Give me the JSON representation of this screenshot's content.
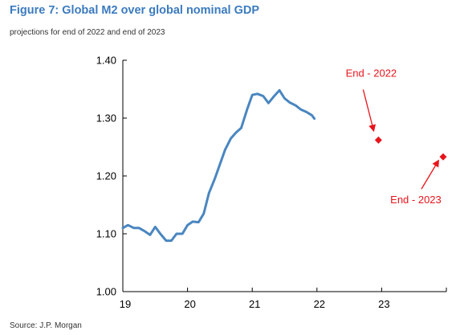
{
  "figure": {
    "title": "Figure 7: Global M2 over global nominal GDP",
    "subtitle": "projections for end of 2022 and end of 2023",
    "source": "Source: J.P. Morgan"
  },
  "colors": {
    "title": "#3b7bbf",
    "line": "#4a86c0",
    "projection": "#e8141b"
  },
  "chart_data": {
    "type": "line",
    "title": "Figure 7: Global M2 over global nominal GDP",
    "subtitle": "projections for end of 2022 and end of 2023",
    "xlabel": "",
    "ylabel": "",
    "xlim": [
      19,
      24
    ],
    "ylim": [
      1.0,
      1.4
    ],
    "x_ticks": [
      19,
      20,
      21,
      22,
      23
    ],
    "x_tick_labels": [
      "19",
      "20",
      "21",
      "22",
      "23"
    ],
    "y_ticks": [
      1.0,
      1.1,
      1.2,
      1.3,
      1.4
    ],
    "y_tick_labels": [
      "1.00",
      "1.10",
      "1.20",
      "1.30",
      "1.40"
    ],
    "grid": false,
    "legend": "none",
    "series": [
      {
        "x": [
          19.0,
          19.08,
          19.17,
          19.25,
          19.33,
          19.42,
          19.5,
          19.58,
          19.67,
          19.75,
          19.83,
          19.92,
          20.0,
          20.08,
          20.17,
          20.25,
          20.33,
          20.42,
          20.5,
          20.58,
          20.67,
          20.75,
          20.83,
          20.92,
          21.0,
          21.08,
          21.17,
          21.25,
          21.33,
          21.42,
          21.5,
          21.58,
          21.67,
          21.75,
          21.83,
          21.92,
          21.96
        ],
        "values": [
          1.11,
          1.115,
          1.11,
          1.11,
          1.105,
          1.098,
          1.112,
          1.1,
          1.088,
          1.088,
          1.1,
          1.1,
          1.115,
          1.121,
          1.12,
          1.135,
          1.17,
          1.195,
          1.22,
          1.245,
          1.265,
          1.275,
          1.283,
          1.315,
          1.34,
          1.342,
          1.338,
          1.326,
          1.337,
          1.348,
          1.334,
          1.327,
          1.322,
          1.315,
          1.311,
          1.305,
          1.299
        ]
      }
    ],
    "projections": [
      {
        "label": "End - 2022",
        "x": 22.95,
        "value": 1.262
      },
      {
        "label": "End - 2023",
        "x": 23.95,
        "value": 1.233
      }
    ]
  }
}
